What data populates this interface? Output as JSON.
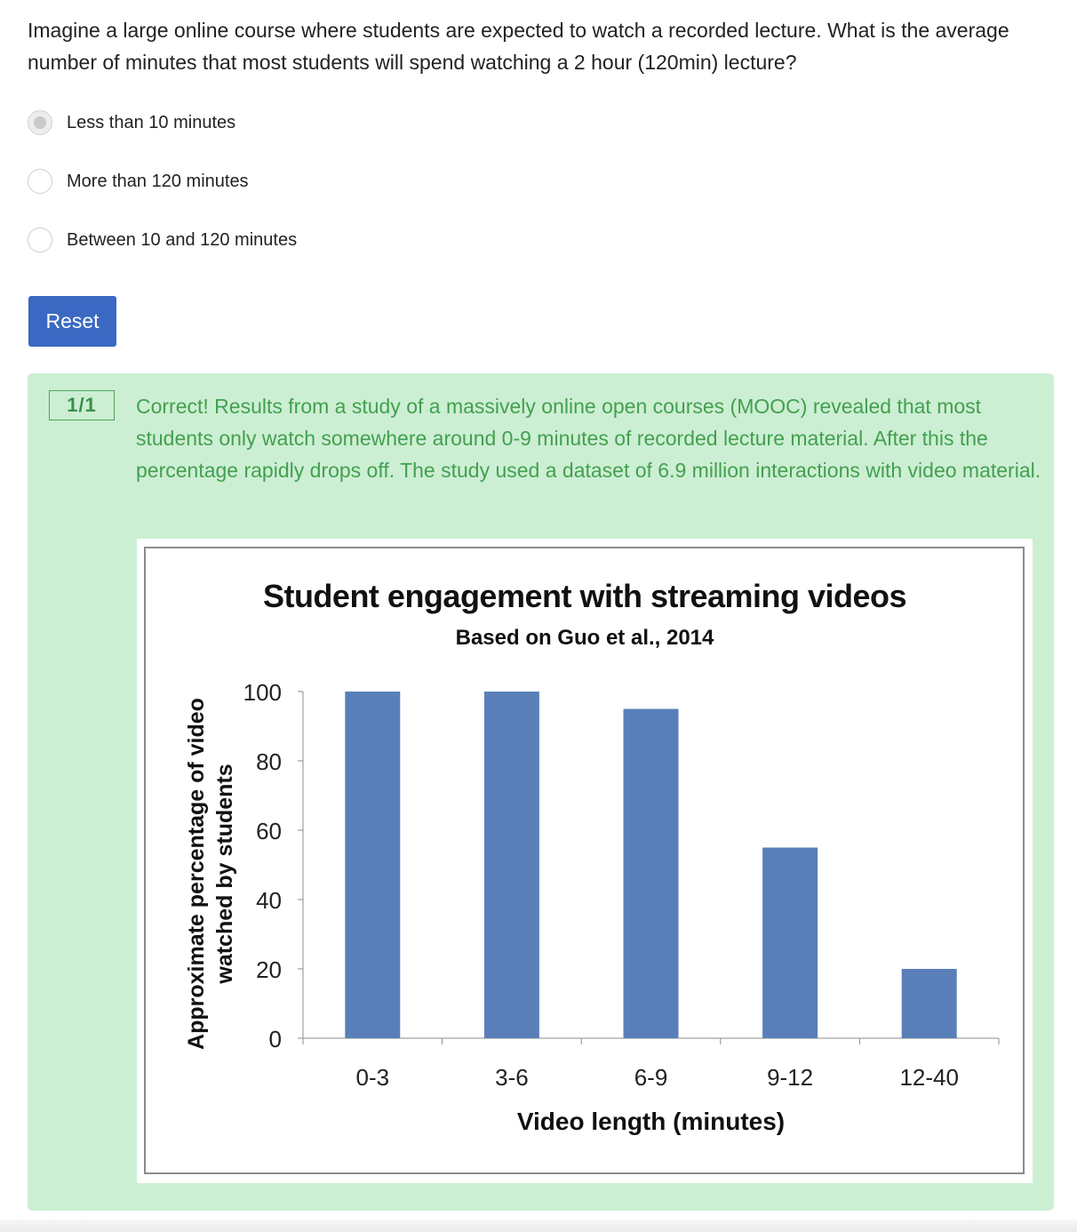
{
  "question": {
    "text": "Imagine a large online course where students are expected to watch a recorded lecture. What is the average number of minutes that most students will spend watching a 2 hour (120min) lecture?"
  },
  "options": [
    {
      "label": "Less than 10 minutes",
      "selected": true
    },
    {
      "label": "More than 120 minutes",
      "selected": false
    },
    {
      "label": "Between 10 and 120 minutes",
      "selected": false
    }
  ],
  "reset_button": {
    "label": "Reset",
    "color": "#3a68c2"
  },
  "feedback": {
    "score": "1/1",
    "text": "Correct! Results from a study of a massively online open courses (MOOC) revealed that most students only watch somewhere around 0-9 minutes of recorded lecture material. After this the percentage rapidly drops off. The study used a dataset of 6.9 million interactions with video material.",
    "background_color": "#ccefd3",
    "text_color": "#43a04f"
  },
  "chart_data": {
    "type": "bar",
    "title": "Student engagement with streaming videos",
    "subtitle": "Based on Guo et al., 2014",
    "categories": [
      "0-3",
      "3-6",
      "6-9",
      "9-12",
      "12-40"
    ],
    "values": [
      100,
      100,
      95,
      55,
      20
    ],
    "xlabel": "Video length (minutes)",
    "ylabel_lines": [
      "Approximate percentage of video",
      "watched by students"
    ],
    "ylim": [
      0,
      100
    ],
    "yticks": [
      "0",
      "20",
      "40",
      "60",
      "80",
      "100"
    ],
    "bar_color": "#5a7fb8",
    "grid": false
  }
}
